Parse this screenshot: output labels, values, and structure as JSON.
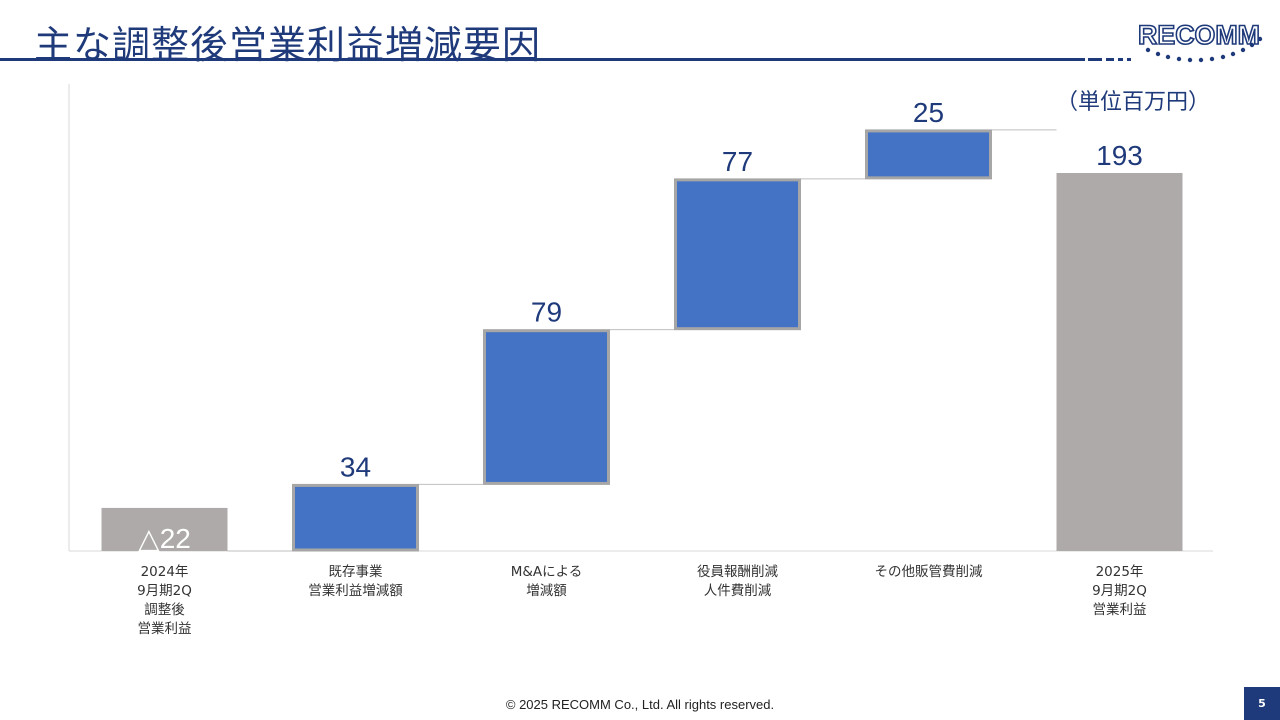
{
  "header": {
    "title": "主な調整後営業利益増減要因",
    "logo_text": "RECOMM"
  },
  "unit_label": "（単位百万円）",
  "chart_data": {
    "type": "bar",
    "subtype": "waterfall",
    "title": "主な調整後営業利益増減要因",
    "categories": [
      [
        "2024年",
        "9月期2Q",
        "調整後",
        "営業利益"
      ],
      [
        "既存事業",
        "営業利益増減額"
      ],
      [
        "M&Aによる",
        "増減額"
      ],
      [
        "役員報酬削減",
        "人件費削減"
      ],
      [
        "その他販管費削減"
      ],
      [
        "2025年",
        "9月期2Q",
        "営業利益"
      ]
    ],
    "values": [
      -22,
      34,
      79,
      77,
      25,
      193
    ],
    "value_labels": [
      "△22",
      "34",
      "79",
      "77",
      "25",
      "193"
    ],
    "kinds": [
      "total",
      "delta",
      "delta",
      "delta",
      "delta",
      "total"
    ],
    "colors": {
      "total": "#aeaaaa",
      "delta": "#4472c4",
      "delta_border": "#a6a6a6",
      "connector": "#bfbfbf",
      "axis": "#d9d9d9",
      "label": "#1f3a7a"
    },
    "ylim": [
      -22,
      193
    ],
    "grid": false,
    "legend": "none"
  },
  "footer": {
    "copyright": "© 2025 RECOMM Co., Ltd. All rights reserved.",
    "page_number": "5"
  },
  "colors": {
    "brand": "#1f3a7a",
    "accent_dots": "#1f3a7a"
  }
}
